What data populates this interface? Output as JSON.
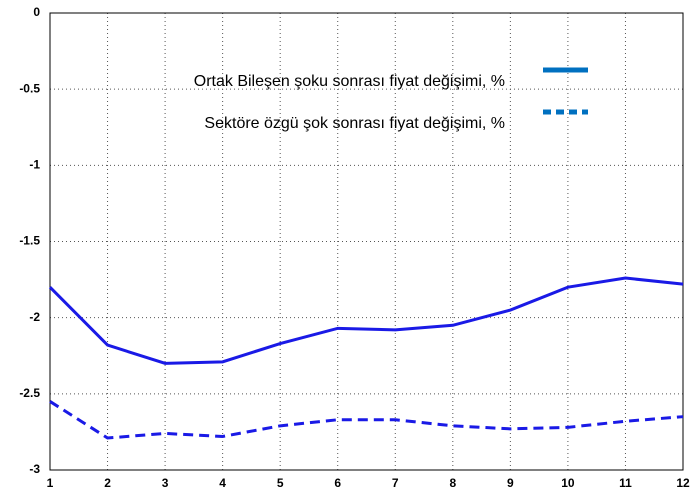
{
  "chart_data": {
    "type": "line",
    "x": [
      1,
      2,
      3,
      4,
      5,
      6,
      7,
      8,
      9,
      10,
      11,
      12
    ],
    "series": [
      {
        "name": "Ortak Bileşen şoku sonrası fiyat değişimi, %",
        "color": "#1a1ae6",
        "line_style": "solid",
        "values": [
          -1.8,
          -2.18,
          -2.3,
          -2.29,
          -2.17,
          -2.07,
          -2.08,
          -2.05,
          -1.95,
          -1.8,
          -1.74,
          -1.78
        ]
      },
      {
        "name": "Sektöre özgü şok sonrası fiyat değişimi, %",
        "color": "#1a1ae6",
        "line_style": "dashed",
        "values": [
          -2.55,
          -2.79,
          -2.76,
          -2.78,
          -2.71,
          -2.67,
          -2.67,
          -2.71,
          -2.73,
          -2.72,
          -2.68,
          -2.65
        ]
      }
    ],
    "xlim": [
      1,
      12
    ],
    "xticks": [
      1,
      2,
      3,
      4,
      5,
      6,
      7,
      8,
      9,
      10,
      11,
      12
    ],
    "ylim": [
      -3,
      0
    ],
    "yticks": [
      -3,
      -2.5,
      -2,
      -1.5,
      -1,
      -0.5,
      0
    ],
    "grid": true,
    "legend": "upper left"
  }
}
